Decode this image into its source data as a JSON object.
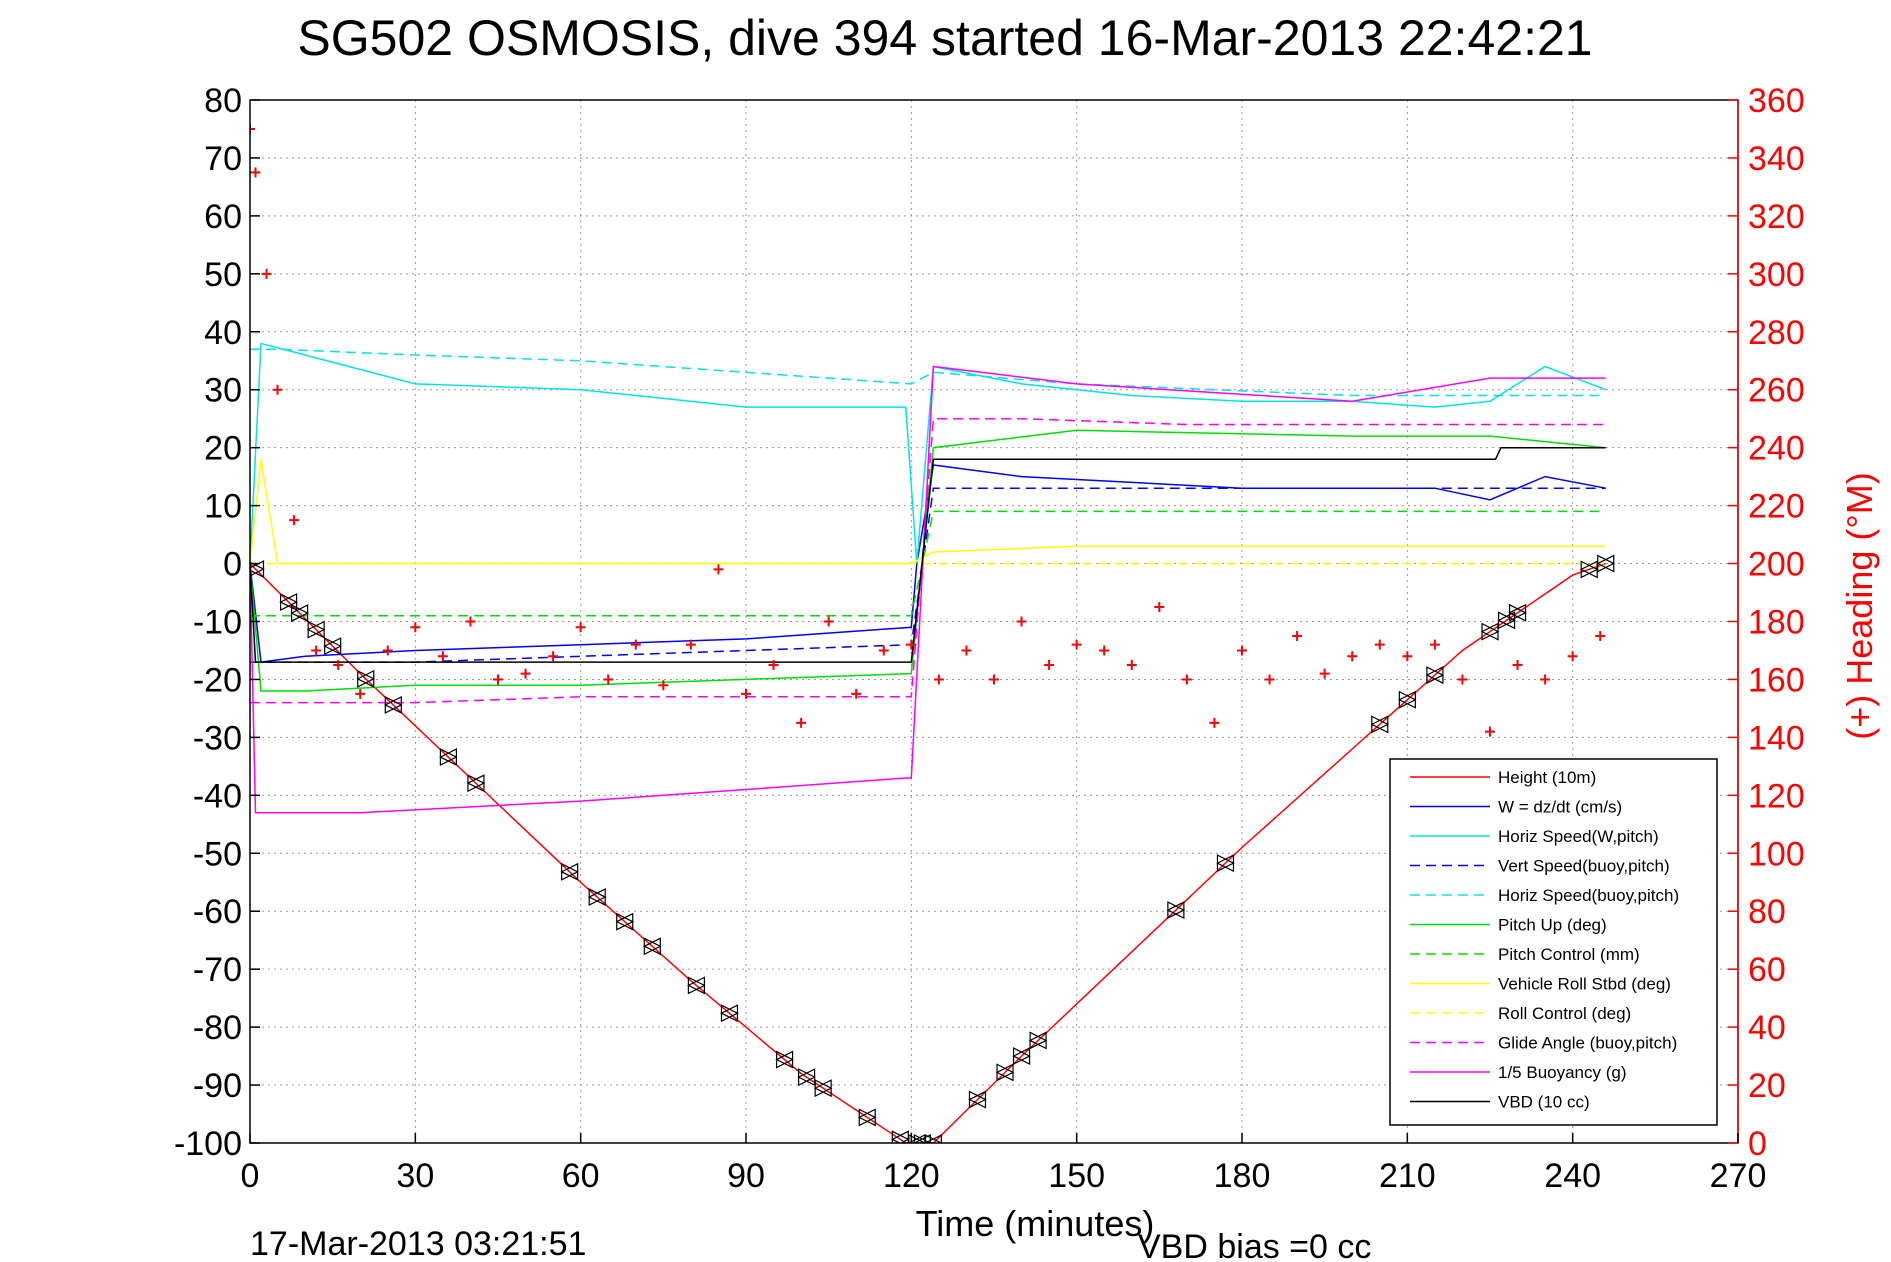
{
  "chart_data": {
    "type": "line",
    "title": "SG502 OSMOSIS, dive 394 started 16-Mar-2013 22:42:21",
    "xlabel": "Time (minutes)",
    "ylabel": "",
    "ylabel_right": "(+) Heading (°M)",
    "xlim": [
      0,
      270
    ],
    "ylim": [
      -100,
      80
    ],
    "ylim_right": [
      0,
      360
    ],
    "x_ticks": [
      0,
      30,
      60,
      90,
      120,
      150,
      180,
      210,
      240,
      270
    ],
    "y_ticks": [
      80,
      70,
      60,
      50,
      40,
      30,
      20,
      10,
      0,
      -10,
      -20,
      -30,
      -40,
      -50,
      -60,
      -70,
      -80,
      -90,
      -100
    ],
    "y_right_ticks": [
      360,
      340,
      320,
      300,
      280,
      260,
      240,
      220,
      200,
      180,
      160,
      140,
      120,
      100,
      80,
      60,
      40,
      20,
      0
    ],
    "grid": true,
    "legend_position": "bottom-right",
    "end_time": "17-Mar-2013 03:21:51",
    "vbd_bias": "VBD bias =0 cc",
    "series": [
      {
        "name": "Height (10m)",
        "color": "#ff0000",
        "style": "solid",
        "x": [
          0,
          20,
          40,
          60,
          80,
          100,
          119,
          124,
          140,
          160,
          180,
          200,
          220,
          240,
          246
        ],
        "y": [
          0,
          -19,
          -37,
          -55,
          -72,
          -88,
          -100,
          -100,
          -85,
          -67,
          -49,
          -32,
          -15,
          -2,
          0
        ]
      },
      {
        "name": "W = dz/dt (cm/s)",
        "color": "#0000ff",
        "style": "solid",
        "x": [
          0,
          2,
          10,
          30,
          60,
          90,
          120,
          121,
          124,
          140,
          160,
          180,
          200,
          215,
          225,
          235,
          246
        ],
        "y": [
          0,
          -17,
          -16,
          -15,
          -14,
          -13,
          -11,
          0,
          17,
          15,
          14,
          13,
          13,
          13,
          11,
          15,
          13
        ]
      },
      {
        "name": "Horiz Speed(W,pitch)",
        "color": "#00e5e5",
        "style": "solid",
        "x": [
          0,
          2,
          10,
          30,
          60,
          90,
          119,
          121,
          124,
          140,
          160,
          180,
          200,
          215,
          225,
          235,
          246
        ],
        "y": [
          0,
          38,
          36,
          31,
          30,
          27,
          27,
          0,
          34,
          31,
          29,
          28,
          28,
          27,
          28,
          34,
          30
        ]
      },
      {
        "name": "Vert Speed(buoy,pitch)",
        "color": "#0000ff",
        "style": "dashed",
        "x": [
          0,
          5,
          30,
          60,
          90,
          120,
          124,
          150,
          200,
          246
        ],
        "y": [
          -17,
          -17,
          -17,
          -16,
          -15,
          -14,
          13,
          13,
          13,
          13
        ]
      },
      {
        "name": "Horiz Speed(buoy,pitch)",
        "color": "#00e5e5",
        "style": "dashed",
        "x": [
          0,
          5,
          30,
          60,
          90,
          120,
          124,
          150,
          200,
          225,
          246
        ],
        "y": [
          37,
          37,
          36,
          35,
          33,
          31,
          33,
          31,
          29,
          29,
          29
        ]
      },
      {
        "name": "Pitch Up (deg)",
        "color": "#00e000",
        "style": "solid",
        "x": [
          0,
          2,
          10,
          30,
          60,
          90,
          120,
          124,
          150,
          200,
          225,
          246
        ],
        "y": [
          0,
          -22,
          -22,
          -21,
          -21,
          -20,
          -19,
          20,
          23,
          22,
          22,
          20
        ]
      },
      {
        "name": "Pitch Control (mm)",
        "color": "#00e000",
        "style": "dashed",
        "x": [
          0,
          120,
          124,
          246
        ],
        "y": [
          -9,
          -9,
          9,
          9
        ]
      },
      {
        "name": "Vehicle Roll Stbd (deg)",
        "color": "#ffff00",
        "style": "solid",
        "x": [
          0,
          2,
          5,
          20,
          60,
          100,
          120,
          124,
          150,
          200,
          240,
          246
        ],
        "y": [
          0,
          18,
          0,
          0,
          0,
          0,
          0,
          2,
          3,
          3,
          3,
          3
        ]
      },
      {
        "name": "Roll Control (deg)",
        "color": "#ffff00",
        "style": "dashed",
        "x": [
          0,
          246
        ],
        "y": [
          0,
          0
        ]
      },
      {
        "name": "Glide Angle (buoy,pitch)",
        "color": "#ff00ff",
        "style": "dashed",
        "x": [
          0,
          5,
          30,
          60,
          90,
          120,
          124,
          140,
          170,
          200,
          225,
          246
        ],
        "y": [
          -24,
          -24,
          -24,
          -23,
          -23,
          -23,
          25,
          25,
          24,
          24,
          24,
          24
        ]
      },
      {
        "name": "1/5 Buoyancy (g)",
        "color": "#ff00ff",
        "style": "solid",
        "x": [
          0,
          1,
          20,
          60,
          90,
          119,
          120,
          124,
          150,
          200,
          225,
          246
        ],
        "y": [
          0,
          -43,
          -43,
          -41,
          -39,
          -37,
          -37,
          34,
          31,
          28,
          32,
          32
        ]
      },
      {
        "name": "VBD (10 cc)",
        "color": "#000000",
        "style": "solid",
        "x": [
          0,
          1,
          120,
          124,
          226,
          227,
          246
        ],
        "y": [
          0,
          -17,
          -17,
          18,
          18,
          20,
          20
        ]
      }
    ],
    "heading": {
      "name": "(+) Heading",
      "color": "#ff0000",
      "marker": "+",
      "x": [
        0,
        1,
        3,
        5,
        8,
        12,
        16,
        20,
        25,
        30,
        35,
        40,
        45,
        50,
        55,
        60,
        65,
        70,
        75,
        80,
        85,
        90,
        95,
        100,
        105,
        110,
        115,
        120,
        125,
        130,
        135,
        140,
        145,
        150,
        155,
        160,
        165,
        170,
        175,
        180,
        185,
        190,
        195,
        200,
        205,
        210,
        215,
        220,
        225,
        230,
        235,
        240,
        245
      ],
      "y": [
        350,
        335,
        300,
        260,
        215,
        170,
        165,
        155,
        170,
        178,
        168,
        180,
        160,
        162,
        168,
        178,
        160,
        172,
        158,
        172,
        198,
        155,
        165,
        145,
        180,
        155,
        170,
        172,
        160,
        170,
        160,
        180,
        165,
        172,
        170,
        165,
        185,
        160,
        145,
        170,
        160,
        175,
        162,
        168,
        172,
        168,
        172,
        160,
        142,
        165,
        160,
        168,
        175
      ]
    },
    "depth_markers_x": [
      1,
      7,
      9,
      12,
      15,
      21,
      26,
      36,
      41,
      58,
      63,
      68,
      73,
      81,
      87,
      97,
      101,
      104,
      112,
      118,
      121,
      122,
      124,
      132,
      137,
      140,
      143,
      168,
      177,
      205,
      210,
      215,
      225,
      228,
      230,
      243,
      246
    ]
  }
}
